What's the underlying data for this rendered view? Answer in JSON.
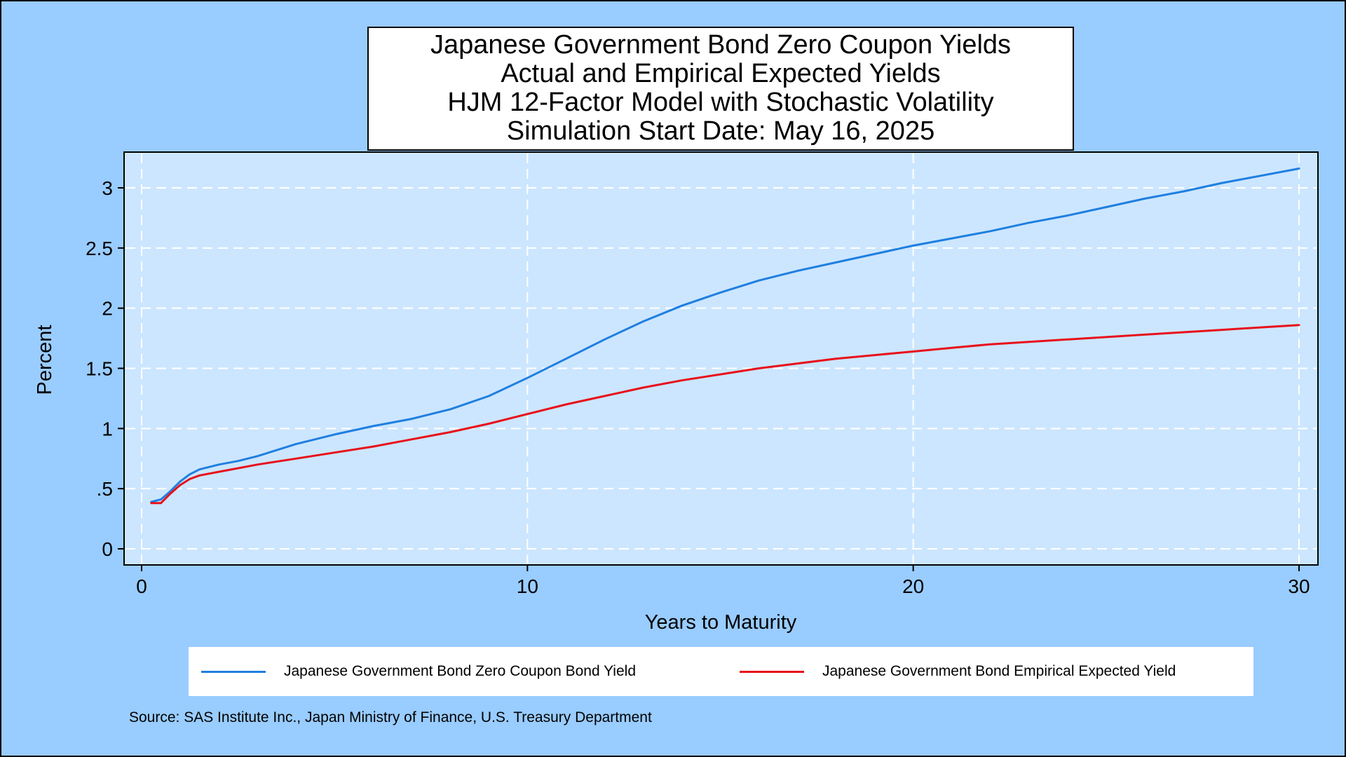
{
  "title_lines": [
    "Japanese Government Bond Zero Coupon Yields",
    "Actual and Empirical Expected Yields",
    "HJM 12-Factor Model with Stochastic Volatility",
    "Simulation Start Date: May 16, 2025"
  ],
  "source": "Source: SAS Institute Inc., Japan Ministry of Finance, U.S. Treasury Department",
  "colors": {
    "background": "#99ccff",
    "plot_area": "#cce6ff",
    "grid": "#ffffff",
    "series_actual": "#1f7fe0",
    "series_expected": "#e8101a"
  },
  "chart_data": {
    "type": "line",
    "xlabel": "Years to Maturity",
    "ylabel": "Percent",
    "xlim": [
      0,
      30
    ],
    "ylim": [
      0,
      3.15
    ],
    "x_ticks": [
      0,
      10,
      20,
      30
    ],
    "x_tick_labels": [
      "0",
      "10",
      "20",
      "30"
    ],
    "y_ticks": [
      0,
      0.5,
      1,
      1.5,
      2,
      2.5,
      3
    ],
    "y_tick_labels": [
      "0",
      ".5",
      "1",
      "1.5",
      "2",
      "2.5",
      "3"
    ],
    "grid": true,
    "legend_position": "bottom",
    "series": [
      {
        "name": "Japanese Government Bond Zero Coupon Bond Yield",
        "color": "#1f7fe0",
        "x": [
          0.25,
          0.5,
          0.75,
          1,
          1.25,
          1.5,
          2,
          2.5,
          3,
          4,
          5,
          6,
          7,
          8,
          9,
          10,
          11,
          12,
          13,
          14,
          15,
          16,
          17,
          18,
          19,
          20,
          21,
          22,
          23,
          24,
          25,
          26,
          27,
          28,
          29,
          30
        ],
        "values": [
          0.39,
          0.41,
          0.48,
          0.56,
          0.62,
          0.66,
          0.7,
          0.73,
          0.77,
          0.87,
          0.95,
          1.02,
          1.08,
          1.16,
          1.27,
          1.42,
          1.58,
          1.74,
          1.89,
          2.02,
          2.13,
          2.23,
          2.31,
          2.38,
          2.45,
          2.52,
          2.58,
          2.64,
          2.71,
          2.77,
          2.84,
          2.91,
          2.97,
          3.04,
          3.1,
          3.16
        ]
      },
      {
        "name": "Japanese Government Bond Empirical Expected Yield",
        "color": "#e8101a",
        "x": [
          0.25,
          0.5,
          0.75,
          1,
          1.25,
          1.5,
          2,
          2.5,
          3,
          4,
          5,
          6,
          7,
          8,
          9,
          10,
          11,
          12,
          13,
          14,
          15,
          16,
          17,
          18,
          19,
          20,
          21,
          22,
          23,
          24,
          25,
          26,
          27,
          28,
          29,
          30
        ],
        "values": [
          0.38,
          0.38,
          0.46,
          0.53,
          0.58,
          0.61,
          0.64,
          0.67,
          0.7,
          0.75,
          0.8,
          0.85,
          0.91,
          0.97,
          1.04,
          1.12,
          1.2,
          1.27,
          1.34,
          1.4,
          1.45,
          1.5,
          1.54,
          1.58,
          1.61,
          1.64,
          1.67,
          1.7,
          1.72,
          1.74,
          1.76,
          1.78,
          1.8,
          1.82,
          1.84,
          1.86
        ]
      }
    ]
  }
}
